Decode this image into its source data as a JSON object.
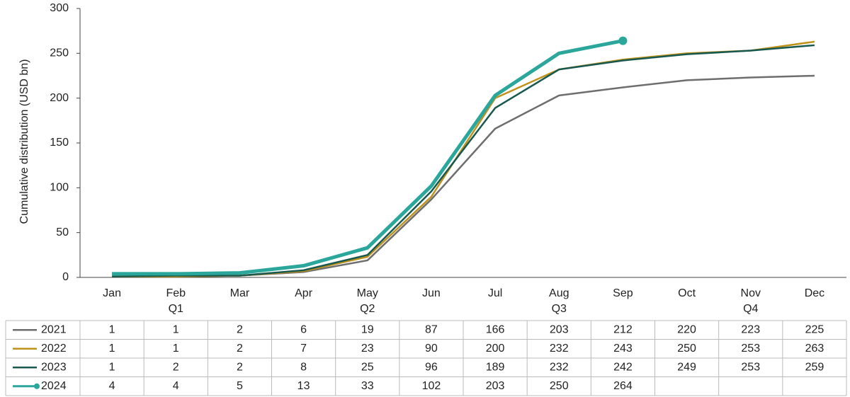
{
  "chart_data": {
    "type": "line",
    "y_label": "Cumulative distribution (USD bn)",
    "categories": [
      "Jan",
      "Feb",
      "Mar",
      "Apr",
      "May",
      "Jun",
      "Jul",
      "Aug",
      "Sep",
      "Oct",
      "Nov",
      "Dec"
    ],
    "quarter_labels": [
      null,
      "Q1",
      null,
      null,
      "Q2",
      null,
      null,
      "Q3",
      null,
      null,
      "Q4",
      null
    ],
    "ylim": [
      0,
      300
    ],
    "yticks": [
      0,
      50,
      100,
      150,
      200,
      250,
      300
    ],
    "series": [
      {
        "name": "2021",
        "color": "#6e6e6e",
        "values": [
          1,
          1,
          2,
          6,
          19,
          87,
          166,
          203,
          212,
          220,
          223,
          225
        ]
      },
      {
        "name": "2022",
        "color": "#c0921c",
        "values": [
          1,
          1,
          2,
          7,
          23,
          90,
          200,
          232,
          243,
          250,
          253,
          263
        ]
      },
      {
        "name": "2023",
        "color": "#17594f",
        "values": [
          1,
          2,
          2,
          8,
          25,
          96,
          189,
          232,
          242,
          249,
          253,
          259
        ]
      },
      {
        "name": "2024",
        "color": "#2aa69a",
        "values": [
          4,
          4,
          5,
          13,
          33,
          102,
          203,
          250,
          264,
          null,
          null,
          null
        ]
      }
    ]
  }
}
